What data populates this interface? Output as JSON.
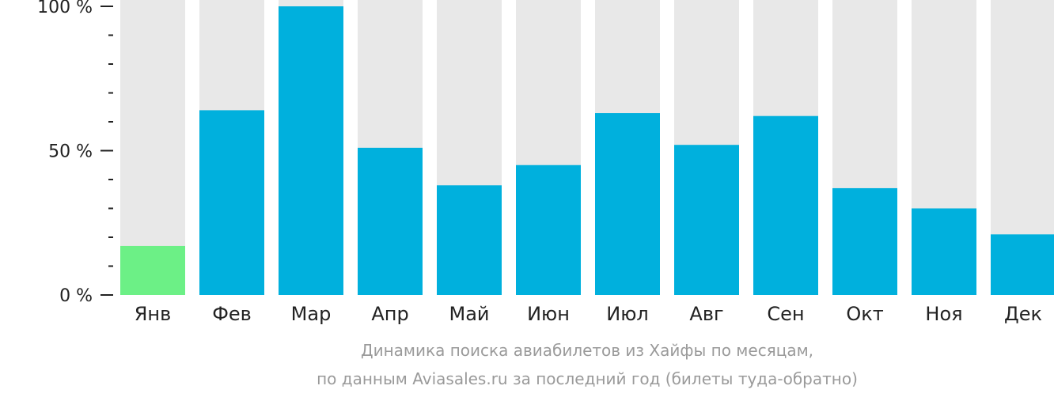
{
  "chart_data": {
    "type": "bar",
    "categories": [
      "Янв",
      "Фев",
      "Мар",
      "Апр",
      "Май",
      "Июн",
      "Июл",
      "Авг",
      "Сен",
      "Окт",
      "Ноя",
      "Дек"
    ],
    "values": [
      17,
      64,
      100,
      51,
      38,
      45,
      63,
      52,
      62,
      37,
      30,
      21
    ],
    "ylim": [
      0,
      100
    ],
    "yticks": [
      {
        "value": 0,
        "label": "0 %"
      },
      {
        "value": 50,
        "label": "50 %"
      },
      {
        "value": 100,
        "label": "100 %"
      }
    ],
    "minor_tick_step": 10,
    "highlight_index": 0,
    "colors": {
      "bar": "#00b0dd",
      "highlight": "#6cf086",
      "track": "#e8e8e8",
      "axis_text": "#222222",
      "caption": "#9a9a9a"
    },
    "grid": false,
    "legend": "none",
    "caption": [
      "Динамика поиска авиабилетов из Хайфы по месяцам,",
      "по данным Aviasales.ru за последний год (билеты туда-обратно)"
    ]
  }
}
